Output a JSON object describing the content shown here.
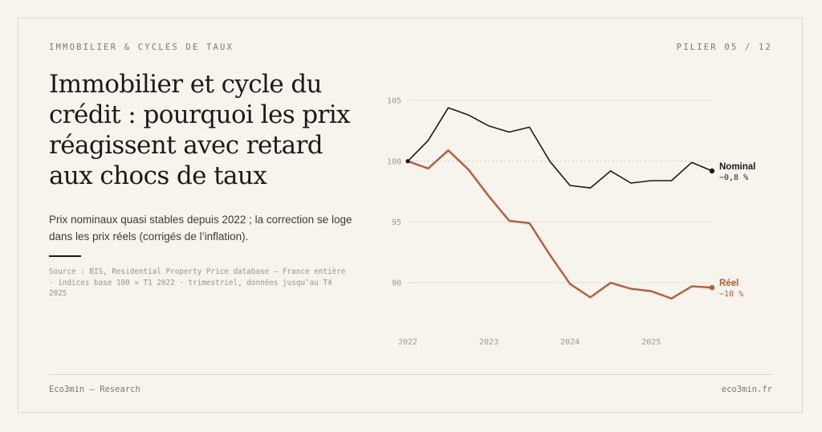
{
  "header": {
    "kicker": "IMMOBILIER & CYCLES DE TAUX",
    "pillar": "PILIER 05 / 12"
  },
  "title_lines": [
    "Immobilier et cycle du",
    "crédit : pourquoi les prix",
    "réagissent avec retard",
    "aux chocs de taux"
  ],
  "subtitle": "Prix nominaux quasi stables depuis 2022 ; la correction se loge dans les prix réels (corrigés de l’inflation).",
  "source": "Source : BIS, Residential Property Price database — France entière · indices base 100 = T1 2022 · trimestriel, données jusqu’au T4 2025",
  "footer": {
    "left": "Eco3min — Research",
    "right": "eco3min.fr"
  },
  "colors": {
    "nominal": "#1c1b19",
    "reel": "#b85a3c",
    "grid": "#e6e0d4",
    "tick": "#a39a7e"
  },
  "chart_data": {
    "type": "line",
    "title": "",
    "xlabel": "",
    "ylabel": "",
    "x_ticks": [
      "2022",
      "2023",
      "2024",
      "2025"
    ],
    "ylim": [
      86.5,
      106
    ],
    "y_ticks": [
      90,
      95,
      100,
      105
    ],
    "reference_line": 100,
    "grid": true,
    "quarters": [
      "T1 2022",
      "T2 2022",
      "T3 2022",
      "T4 2022",
      "T1 2023",
      "T2 2023",
      "T3 2023",
      "T4 2023",
      "T1 2024",
      "T2 2024",
      "T3 2024",
      "T4 2024",
      "T1 2025",
      "T2 2025",
      "T3 2025",
      "T4 2025"
    ],
    "series": [
      {
        "name": "Nominal",
        "end_label": "−0,8 %",
        "color": "#1c1b19",
        "values": [
          100.0,
          101.7,
          104.4,
          103.8,
          102.9,
          102.4,
          102.8,
          100.0,
          98.0,
          97.8,
          99.2,
          98.2,
          98.4,
          98.4,
          99.9,
          99.2
        ]
      },
      {
        "name": "Réel",
        "end_label": "−10 %",
        "color": "#b85a3c",
        "values": [
          100.0,
          99.4,
          100.9,
          99.3,
          97.1,
          95.1,
          94.9,
          92.3,
          89.9,
          88.8,
          90.0,
          89.5,
          89.3,
          88.7,
          89.7,
          89.6
        ]
      }
    ]
  }
}
